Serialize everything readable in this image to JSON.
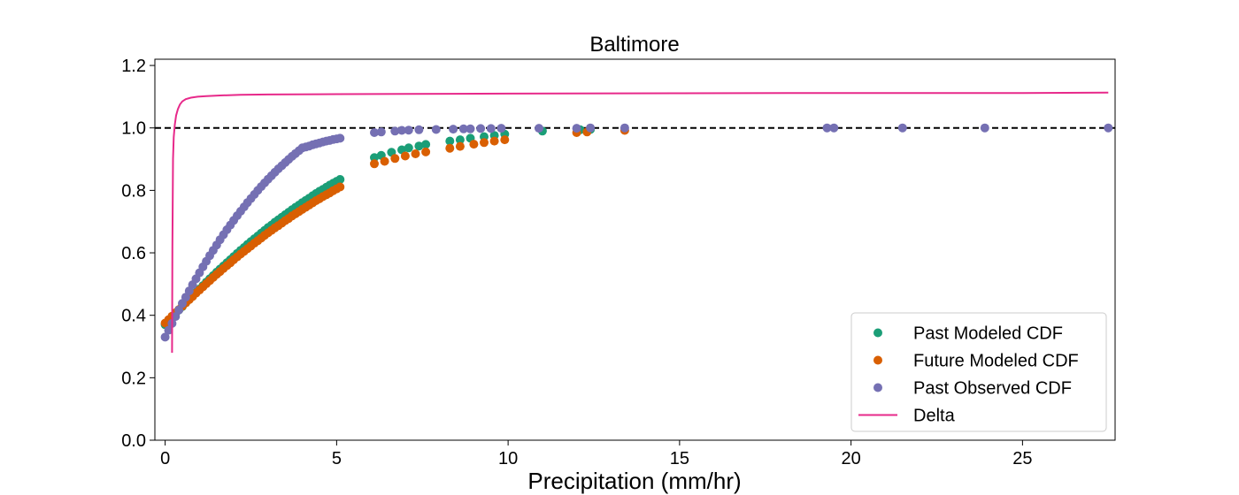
{
  "chart_data": {
    "type": "scatter",
    "title": "Baltimore",
    "xlabel": "Precipitation (mm/hr)",
    "ylabel": "",
    "xlim": [
      -0.3,
      27.7
    ],
    "ylim": [
      0.0,
      1.22
    ],
    "xticks": [
      0,
      5,
      10,
      15,
      20,
      25
    ],
    "yticks": [
      0.0,
      0.2,
      0.4,
      0.6,
      0.8,
      1.0,
      1.2
    ],
    "xtick_labels": [
      "0",
      "5",
      "10",
      "15",
      "20",
      "25"
    ],
    "ytick_labels": [
      "0.0",
      "0.2",
      "0.4",
      "0.6",
      "0.8",
      "1.0",
      "1.2"
    ],
    "reference_line": {
      "y": 1.0,
      "style": "dashed",
      "color": "#000000"
    },
    "legend_position": "lower-right",
    "series": [
      {
        "name": "Past Modeled CDF",
        "kind": "points",
        "color": "#1b9e77",
        "x": [
          0.0,
          0.1,
          0.2,
          0.3,
          0.4,
          0.5,
          0.6,
          0.7,
          0.8,
          0.9,
          1.0,
          1.1,
          1.2,
          1.3,
          1.4,
          1.5,
          1.6,
          1.7,
          1.8,
          1.9,
          2.0,
          2.1,
          2.2,
          2.3,
          2.4,
          2.5,
          2.6,
          2.7,
          2.8,
          2.9,
          3.0,
          3.1,
          3.2,
          3.3,
          3.4,
          3.5,
          3.6,
          3.7,
          3.8,
          3.9,
          4.0,
          4.1,
          4.2,
          4.3,
          4.4,
          4.5,
          4.6,
          4.7,
          4.8,
          4.9,
          5.0,
          5.1,
          6.1,
          6.3,
          6.6,
          6.9,
          7.1,
          7.4,
          7.6,
          8.3,
          8.6,
          8.9,
          9.3,
          9.6,
          9.9,
          11.0,
          12.1,
          12.4
        ],
        "y": [
          0.37,
          0.382,
          0.394,
          0.405,
          0.417,
          0.428,
          0.44,
          0.451,
          0.462,
          0.473,
          0.484,
          0.495,
          0.506,
          0.517,
          0.527,
          0.538,
          0.548,
          0.558,
          0.568,
          0.578,
          0.588,
          0.598,
          0.608,
          0.617,
          0.627,
          0.636,
          0.645,
          0.654,
          0.663,
          0.672,
          0.681,
          0.689,
          0.698,
          0.706,
          0.714,
          0.722,
          0.73,
          0.738,
          0.746,
          0.753,
          0.761,
          0.768,
          0.775,
          0.783,
          0.79,
          0.797,
          0.803,
          0.81,
          0.817,
          0.823,
          0.829,
          0.835,
          0.905,
          0.912,
          0.922,
          0.93,
          0.936,
          0.942,
          0.947,
          0.958,
          0.962,
          0.967,
          0.972,
          0.976,
          0.98,
          0.99,
          0.994,
          0.995
        ]
      },
      {
        "name": "Future Modeled CDF",
        "kind": "points",
        "color": "#d95f02",
        "x": [
          0.0,
          0.1,
          0.2,
          0.3,
          0.4,
          0.5,
          0.6,
          0.7,
          0.8,
          0.9,
          1.0,
          1.1,
          1.2,
          1.3,
          1.4,
          1.5,
          1.6,
          1.7,
          1.8,
          1.9,
          2.0,
          2.1,
          2.2,
          2.3,
          2.4,
          2.5,
          2.6,
          2.7,
          2.8,
          2.9,
          3.0,
          3.1,
          3.2,
          3.3,
          3.4,
          3.5,
          3.6,
          3.7,
          3.8,
          3.9,
          4.0,
          4.1,
          4.2,
          4.3,
          4.4,
          4.5,
          4.6,
          4.7,
          4.8,
          4.9,
          5.0,
          5.1,
          6.1,
          6.4,
          6.7,
          7.0,
          7.3,
          7.6,
          8.3,
          8.6,
          9.0,
          9.3,
          9.6,
          9.9,
          12.0,
          12.3,
          13.4
        ],
        "y": [
          0.375,
          0.386,
          0.397,
          0.408,
          0.418,
          0.429,
          0.44,
          0.45,
          0.46,
          0.471,
          0.481,
          0.491,
          0.501,
          0.511,
          0.521,
          0.531,
          0.54,
          0.55,
          0.559,
          0.568,
          0.578,
          0.587,
          0.596,
          0.605,
          0.613,
          0.622,
          0.631,
          0.639,
          0.647,
          0.656,
          0.664,
          0.672,
          0.68,
          0.687,
          0.695,
          0.703,
          0.71,
          0.718,
          0.725,
          0.732,
          0.739,
          0.746,
          0.753,
          0.76,
          0.767,
          0.773,
          0.78,
          0.786,
          0.792,
          0.799,
          0.805,
          0.811,
          0.885,
          0.893,
          0.902,
          0.91,
          0.917,
          0.923,
          0.935,
          0.941,
          0.948,
          0.953,
          0.958,
          0.962,
          0.985,
          0.987,
          0.992
        ]
      },
      {
        "name": "Past Observed CDF",
        "kind": "points",
        "color": "#7570b3",
        "x": [
          0.0,
          0.1,
          0.2,
          0.3,
          0.4,
          0.5,
          0.6,
          0.7,
          0.8,
          0.9,
          1.0,
          1.1,
          1.2,
          1.3,
          1.4,
          1.5,
          1.6,
          1.7,
          1.8,
          1.9,
          2.0,
          2.1,
          2.2,
          2.3,
          2.4,
          2.5,
          2.6,
          2.7,
          2.8,
          2.9,
          3.0,
          3.1,
          3.2,
          3.3,
          3.4,
          3.5,
          3.6,
          3.7,
          3.8,
          3.9,
          4.0,
          4.1,
          4.2,
          4.3,
          4.4,
          4.5,
          4.6,
          4.7,
          4.8,
          4.9,
          5.0,
          5.1,
          6.1,
          6.3,
          6.7,
          6.9,
          7.1,
          7.4,
          7.9,
          8.4,
          8.7,
          8.9,
          9.2,
          9.5,
          9.8,
          10.9,
          12.0,
          12.4,
          13.4,
          19.3,
          19.5,
          21.5,
          23.9,
          27.5
        ],
        "y": [
          0.33,
          0.352,
          0.374,
          0.396,
          0.417,
          0.438,
          0.458,
          0.478,
          0.498,
          0.517,
          0.536,
          0.555,
          0.573,
          0.591,
          0.608,
          0.625,
          0.642,
          0.658,
          0.674,
          0.689,
          0.704,
          0.719,
          0.733,
          0.747,
          0.761,
          0.774,
          0.787,
          0.8,
          0.812,
          0.824,
          0.836,
          0.847,
          0.858,
          0.869,
          0.879,
          0.889,
          0.899,
          0.909,
          0.918,
          0.927,
          0.936,
          0.939,
          0.942,
          0.946,
          0.949,
          0.952,
          0.955,
          0.958,
          0.96,
          0.963,
          0.965,
          0.967,
          0.985,
          0.987,
          0.99,
          0.992,
          0.993,
          0.994,
          0.995,
          0.996,
          0.997,
          0.997,
          0.998,
          0.998,
          0.999,
          0.999,
          0.999,
          1.0,
          1.0,
          1.0,
          1.0,
          1.0,
          1.0,
          1.0
        ]
      },
      {
        "name": "Delta",
        "kind": "line",
        "color": "#e7298a",
        "x": [
          0.2,
          0.21,
          0.23,
          0.25,
          0.28,
          0.32,
          0.37,
          0.43,
          0.5,
          0.6,
          0.75,
          0.95,
          1.2,
          1.6,
          2.2,
          3.0,
          4.5,
          7.0,
          10.0,
          15.0,
          20.0,
          25.0,
          27.5
        ],
        "y": [
          0.28,
          0.62,
          0.9,
          0.97,
          1.01,
          1.04,
          1.06,
          1.075,
          1.085,
          1.092,
          1.097,
          1.1,
          1.102,
          1.104,
          1.106,
          1.107,
          1.108,
          1.109,
          1.11,
          1.111,
          1.112,
          1.112,
          1.113
        ]
      }
    ]
  }
}
